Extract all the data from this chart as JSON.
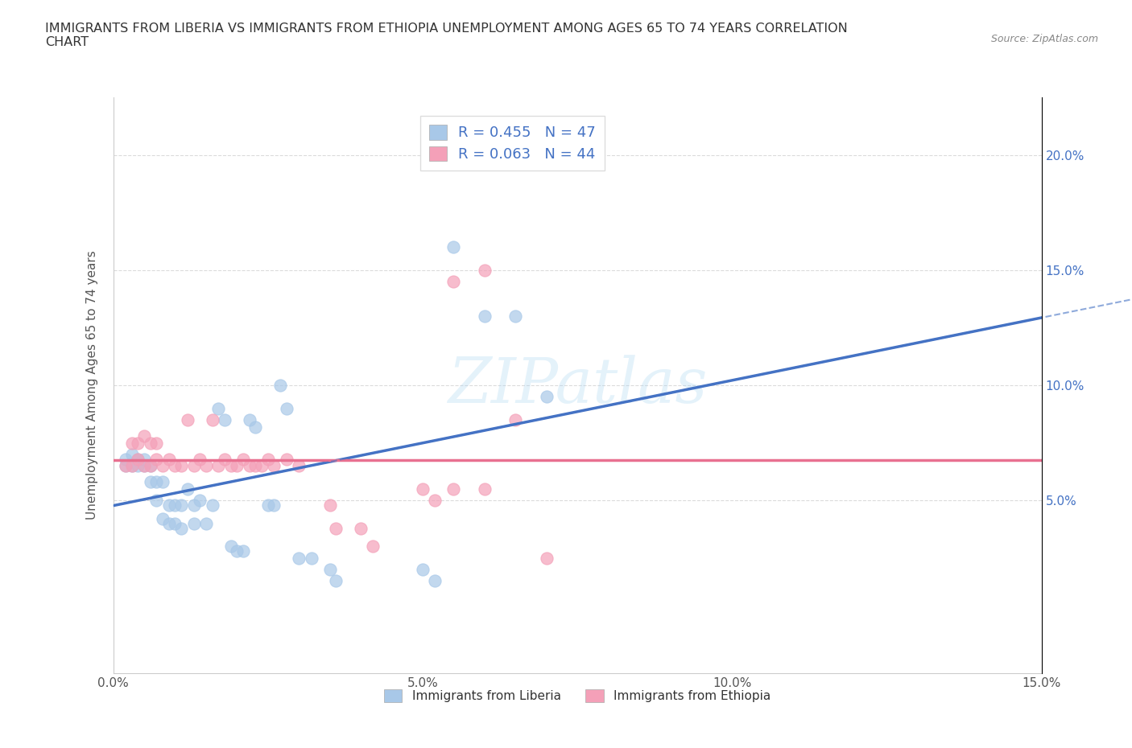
{
  "title": "IMMIGRANTS FROM LIBERIA VS IMMIGRANTS FROM ETHIOPIA UNEMPLOYMENT AMONG AGES 65 TO 74 YEARS CORRELATION\nCHART",
  "source": "Source: ZipAtlas.com",
  "ylabel": "Unemployment Among Ages 65 to 74 years",
  "xlim": [
    0.0,
    0.15
  ],
  "ylim": [
    -0.025,
    0.225
  ],
  "xticks": [
    0.0,
    0.05,
    0.1,
    0.15
  ],
  "yticks": [
    0.05,
    0.1,
    0.15,
    0.2
  ],
  "xticklabels": [
    "0.0%",
    "5.0%",
    "10.0%",
    "15.0%"
  ],
  "yticklabels": [
    "5.0%",
    "10.0%",
    "15.0%",
    "20.0%"
  ],
  "liberia_color": "#a8c8e8",
  "ethiopia_color": "#f4a0b8",
  "liberia_line_color": "#4472c4",
  "ethiopia_line_color": "#e87090",
  "liberia_R": 0.455,
  "liberia_N": 47,
  "ethiopia_R": 0.063,
  "ethiopia_N": 44,
  "legend_label_liberia": "Immigrants from Liberia",
  "legend_label_ethiopia": "Immigrants from Ethiopia",
  "liberia_scatter": [
    [
      0.002,
      0.065
    ],
    [
      0.002,
      0.068
    ],
    [
      0.003,
      0.065
    ],
    [
      0.003,
      0.07
    ],
    [
      0.004,
      0.065
    ],
    [
      0.004,
      0.068
    ],
    [
      0.005,
      0.065
    ],
    [
      0.005,
      0.068
    ],
    [
      0.006,
      0.065
    ],
    [
      0.006,
      0.058
    ],
    [
      0.007,
      0.058
    ],
    [
      0.007,
      0.05
    ],
    [
      0.008,
      0.058
    ],
    [
      0.008,
      0.042
    ],
    [
      0.009,
      0.048
    ],
    [
      0.009,
      0.04
    ],
    [
      0.01,
      0.048
    ],
    [
      0.01,
      0.04
    ],
    [
      0.011,
      0.048
    ],
    [
      0.011,
      0.038
    ],
    [
      0.012,
      0.055
    ],
    [
      0.013,
      0.048
    ],
    [
      0.013,
      0.04
    ],
    [
      0.014,
      0.05
    ],
    [
      0.015,
      0.04
    ],
    [
      0.016,
      0.048
    ],
    [
      0.017,
      0.09
    ],
    [
      0.018,
      0.085
    ],
    [
      0.019,
      0.03
    ],
    [
      0.02,
      0.028
    ],
    [
      0.021,
      0.028
    ],
    [
      0.022,
      0.085
    ],
    [
      0.023,
      0.082
    ],
    [
      0.025,
      0.048
    ],
    [
      0.026,
      0.048
    ],
    [
      0.027,
      0.1
    ],
    [
      0.028,
      0.09
    ],
    [
      0.03,
      0.025
    ],
    [
      0.032,
      0.025
    ],
    [
      0.035,
      0.02
    ],
    [
      0.036,
      0.015
    ],
    [
      0.05,
      0.02
    ],
    [
      0.052,
      0.015
    ],
    [
      0.055,
      0.16
    ],
    [
      0.06,
      0.13
    ],
    [
      0.065,
      0.13
    ],
    [
      0.07,
      0.095
    ]
  ],
  "ethiopia_scatter": [
    [
      0.002,
      0.065
    ],
    [
      0.003,
      0.065
    ],
    [
      0.003,
      0.075
    ],
    [
      0.004,
      0.068
    ],
    [
      0.004,
      0.075
    ],
    [
      0.005,
      0.065
    ],
    [
      0.005,
      0.078
    ],
    [
      0.006,
      0.065
    ],
    [
      0.006,
      0.075
    ],
    [
      0.007,
      0.068
    ],
    [
      0.007,
      0.075
    ],
    [
      0.008,
      0.065
    ],
    [
      0.009,
      0.068
    ],
    [
      0.01,
      0.065
    ],
    [
      0.011,
      0.065
    ],
    [
      0.012,
      0.085
    ],
    [
      0.013,
      0.065
    ],
    [
      0.014,
      0.068
    ],
    [
      0.015,
      0.065
    ],
    [
      0.016,
      0.085
    ],
    [
      0.017,
      0.065
    ],
    [
      0.018,
      0.068
    ],
    [
      0.019,
      0.065
    ],
    [
      0.02,
      0.065
    ],
    [
      0.021,
      0.068
    ],
    [
      0.022,
      0.065
    ],
    [
      0.023,
      0.065
    ],
    [
      0.024,
      0.065
    ],
    [
      0.025,
      0.068
    ],
    [
      0.026,
      0.065
    ],
    [
      0.028,
      0.068
    ],
    [
      0.03,
      0.065
    ],
    [
      0.035,
      0.048
    ],
    [
      0.036,
      0.038
    ],
    [
      0.04,
      0.038
    ],
    [
      0.042,
      0.03
    ],
    [
      0.05,
      0.055
    ],
    [
      0.052,
      0.05
    ],
    [
      0.055,
      0.055
    ],
    [
      0.06,
      0.055
    ],
    [
      0.065,
      0.085
    ],
    [
      0.07,
      0.025
    ],
    [
      0.055,
      0.145
    ],
    [
      0.06,
      0.15
    ]
  ]
}
